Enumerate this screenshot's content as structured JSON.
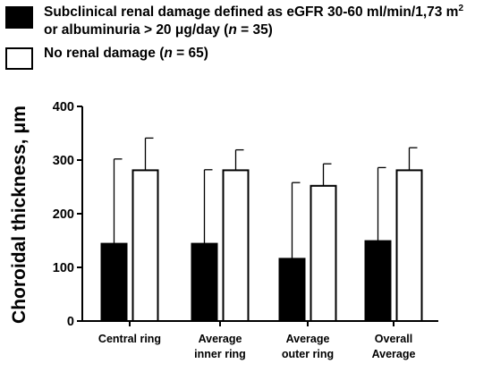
{
  "legend": {
    "items": [
      {
        "lines": [
          "Subclinical renal damage defined as eGFR 30-60 ml/min/1,73 m",
          "or  albuminuria > 20 μg/day ("
        ],
        "sup": "2",
        "n_italic": "n",
        "n_tail": " = 35)",
        "color": "#000000"
      },
      {
        "line": "No renal damage (",
        "n_italic": "n",
        "n_tail": " = 65)",
        "color": "#ffffff"
      }
    ]
  },
  "chart_data": {
    "type": "bar",
    "categories": [
      [
        "Central ring"
      ],
      [
        "Average",
        "inner ring"
      ],
      [
        "Average",
        "outer ring"
      ],
      [
        "Overall",
        "Average"
      ]
    ],
    "series": [
      {
        "values": [
          144,
          144,
          116,
          149
        ],
        "error": [
          158,
          138,
          142,
          137
        ],
        "color": "#000000"
      },
      {
        "values": [
          281,
          281,
          252,
          281
        ],
        "error": [
          60,
          38,
          41,
          42
        ],
        "color": "#ffffff"
      }
    ],
    "ylabel": "Choroidal thickness, μm",
    "ylim": [
      0,
      400
    ],
    "yticks": [
      0,
      100,
      200,
      300,
      400
    ],
    "grid": false
  }
}
